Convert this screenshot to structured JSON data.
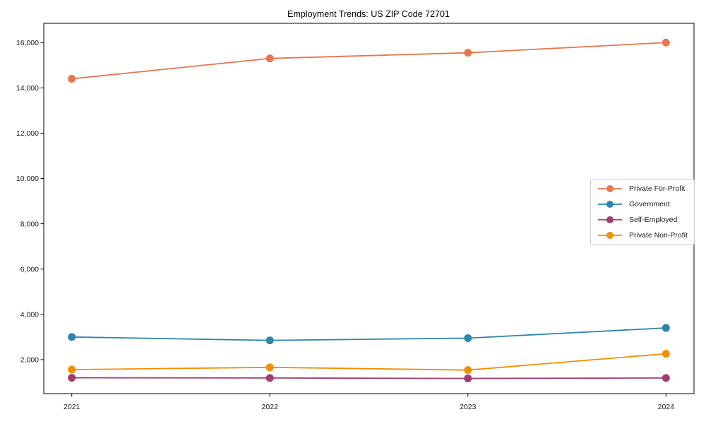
{
  "page": {
    "background_color": "#ffffff",
    "text_color": "#1a1a1a",
    "spine_color": "#000000",
    "legend_border_color": "#cccccc"
  },
  "chart_data": {
    "type": "line",
    "title": "Employment Trends: US ZIP Code 72701",
    "categories": [
      "2021",
      "2022",
      "2023",
      "2024"
    ],
    "series": [
      {
        "name": "Private For-Profit",
        "color": "#E8764B",
        "values": [
          14400,
          15300,
          15550,
          16000
        ]
      },
      {
        "name": "Government",
        "color": "#2E86AB",
        "values": [
          3000,
          2850,
          2950,
          3400
        ]
      },
      {
        "name": "Self-Employed",
        "color": "#A23B72",
        "values": [
          1200,
          1190,
          1170,
          1190
        ]
      },
      {
        "name": "Private Non-Profit",
        "color": "#F18F01",
        "values": [
          1560,
          1660,
          1540,
          2260
        ]
      }
    ],
    "xlabel": "",
    "ylabel": "",
    "ylim": [
      500,
      16850
    ],
    "yticks": [
      2000,
      4000,
      6000,
      8000,
      10000,
      12000,
      14000,
      16000
    ],
    "grid": false,
    "legend_position": "center-right",
    "marker": "circle"
  }
}
